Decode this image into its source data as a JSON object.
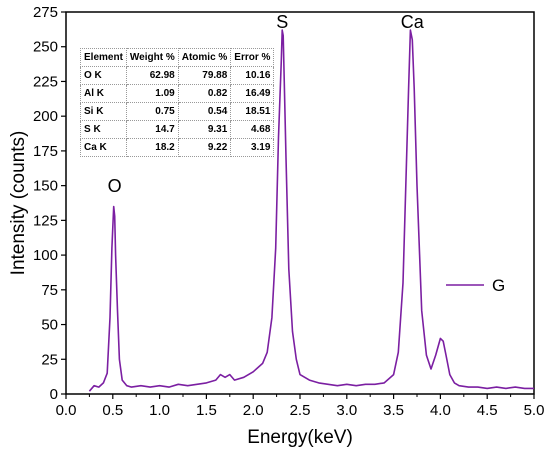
{
  "chart_data": {
    "type": "line",
    "xlabel": "Energy(keV)",
    "ylabel": "Intensity (counts)",
    "xlim": [
      0.0,
      5.0
    ],
    "ylim": [
      0,
      275
    ],
    "x_ticks": [
      "0.0",
      "0.5",
      "1.0",
      "1.5",
      "2.0",
      "2.5",
      "3.0",
      "3.5",
      "4.0",
      "4.5",
      "5.0"
    ],
    "y_ticks": [
      "0",
      "25",
      "50",
      "75",
      "100",
      "125",
      "150",
      "175",
      "200",
      "225",
      "250",
      "275"
    ],
    "grid": false,
    "legend": {
      "position": "right",
      "entries": [
        "G"
      ]
    },
    "series_color": "#7b1fa2",
    "series": [
      {
        "name": "G",
        "x": [
          0.25,
          0.3,
          0.35,
          0.4,
          0.44,
          0.47,
          0.49,
          0.51,
          0.52,
          0.53,
          0.55,
          0.57,
          0.6,
          0.65,
          0.7,
          0.8,
          0.9,
          1.0,
          1.1,
          1.2,
          1.3,
          1.4,
          1.5,
          1.6,
          1.65,
          1.7,
          1.75,
          1.8,
          1.9,
          2.0,
          2.1,
          2.15,
          2.2,
          2.24,
          2.27,
          2.3,
          2.31,
          2.32,
          2.33,
          2.35,
          2.38,
          2.42,
          2.46,
          2.5,
          2.6,
          2.7,
          2.8,
          2.9,
          3.0,
          3.1,
          3.2,
          3.3,
          3.4,
          3.5,
          3.55,
          3.6,
          3.63,
          3.66,
          3.68,
          3.7,
          3.72,
          3.75,
          3.8,
          3.85,
          3.9,
          3.95,
          4.0,
          4.03,
          4.06,
          4.1,
          4.15,
          4.2,
          4.3,
          4.4,
          4.5,
          4.6,
          4.7,
          4.8,
          4.9,
          5.0
        ],
        "y": [
          2,
          6,
          5,
          8,
          15,
          55,
          105,
          135,
          128,
          100,
          60,
          25,
          10,
          6,
          5,
          6,
          5,
          6,
          5,
          7,
          6,
          7,
          8,
          10,
          14,
          12,
          14,
          10,
          12,
          16,
          22,
          30,
          55,
          105,
          185,
          240,
          262,
          258,
          230,
          170,
          90,
          45,
          25,
          14,
          10,
          8,
          7,
          6,
          7,
          6,
          7,
          7,
          8,
          14,
          30,
          80,
          150,
          220,
          262,
          255,
          220,
          150,
          60,
          28,
          18,
          28,
          40,
          38,
          28,
          14,
          8,
          6,
          5,
          5,
          4,
          5,
          4,
          5,
          4,
          4
        ]
      }
    ],
    "peak_labels": [
      {
        "text": "O",
        "x": 0.52
      },
      {
        "text": "S",
        "x": 2.31
      },
      {
        "text": "Ca",
        "x": 3.7
      }
    ],
    "table": {
      "headers": [
        "Element",
        "Weight %",
        "Atomic %",
        "Error %"
      ],
      "rows": [
        [
          "O  K",
          "62.98",
          "79.88",
          "10.16"
        ],
        [
          "Al K",
          "1.09",
          "0.82",
          "16.49"
        ],
        [
          "Si K",
          "0.75",
          "0.54",
          "18.51"
        ],
        [
          "S  K",
          "14.7",
          "9.31",
          "4.68"
        ],
        [
          "Ca K",
          "18.2",
          "9.22",
          "3.19"
        ]
      ]
    }
  }
}
